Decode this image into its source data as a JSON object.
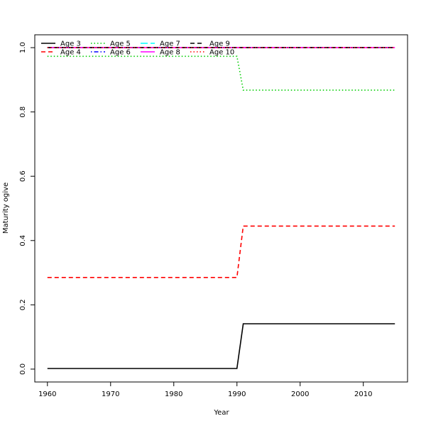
{
  "chart_data": {
    "type": "line",
    "title": "",
    "xlabel": "Year",
    "ylabel": "Maturity ogive",
    "xlim": [
      1958,
      2017
    ],
    "ylim": [
      -0.04,
      1.04
    ],
    "x_ticks": [
      1960,
      1970,
      1980,
      1990,
      2000,
      2010
    ],
    "y_ticks": [
      0.0,
      0.2,
      0.4,
      0.6,
      0.8,
      1.0
    ],
    "y_tick_labels": [
      "0.0",
      "0.2",
      "0.4",
      "0.6",
      "0.8",
      "1.0"
    ],
    "grid": false,
    "legend_position": "top-left",
    "series": [
      {
        "name": "Age 3",
        "color": "#000000",
        "dash": "solid",
        "points": [
          [
            1960,
            0.002
          ],
          [
            1990,
            0.002
          ],
          [
            1991,
            0.141
          ],
          [
            2015,
            0.141
          ]
        ]
      },
      {
        "name": "Age 4",
        "color": "#ff0000",
        "dash": "dashed",
        "points": [
          [
            1960,
            0.285
          ],
          [
            1990,
            0.285
          ],
          [
            1991,
            0.445
          ],
          [
            2015,
            0.445
          ]
        ]
      },
      {
        "name": "Age 5",
        "color": "#00cd00",
        "dash": "dotted",
        "points": [
          [
            1960,
            0.973
          ],
          [
            1990,
            0.973
          ],
          [
            1991,
            0.868
          ],
          [
            2015,
            0.868
          ]
        ]
      },
      {
        "name": "Age 6",
        "color": "#0000ff",
        "dash": "dotdash",
        "points": [
          [
            1960,
            1.0
          ],
          [
            2015,
            1.0
          ]
        ]
      },
      {
        "name": "Age 7",
        "color": "#00ffff",
        "dash": "longdash",
        "points": [
          [
            1960,
            1.0
          ],
          [
            2015,
            1.0
          ]
        ]
      },
      {
        "name": "Age 8",
        "color": "#ff00ff",
        "dash": "solid",
        "points": [
          [
            1960,
            1.0
          ],
          [
            2015,
            1.0
          ]
        ]
      },
      {
        "name": "Age 9",
        "color": "#000000",
        "dash": "dashed",
        "points": [
          [
            1960,
            1.0
          ],
          [
            2015,
            1.0
          ]
        ]
      },
      {
        "name": "Age 10",
        "color": "#ff0000",
        "dash": "dotted",
        "points": [
          [
            1960,
            1.0
          ],
          [
            2015,
            1.0
          ]
        ]
      }
    ]
  }
}
